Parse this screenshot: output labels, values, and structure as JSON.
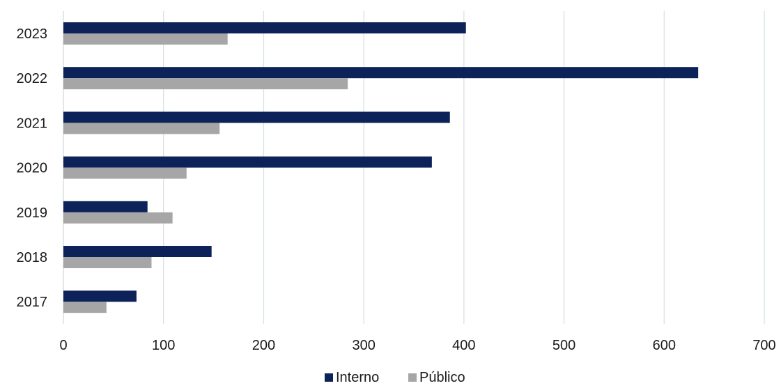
{
  "chart_data": {
    "type": "bar",
    "orientation": "horizontal",
    "title": "",
    "xlabel": "",
    "ylabel": "",
    "categories": [
      "2023",
      "2022",
      "2021",
      "2020",
      "2019",
      "2018",
      "2017"
    ],
    "series": [
      {
        "name": "Interno",
        "color": "#0d2259",
        "values": [
          402,
          634,
          386,
          368,
          84,
          148,
          73
        ]
      },
      {
        "name": "Público",
        "color": "#a6a6a6",
        "values": [
          164,
          284,
          156,
          123,
          109,
          88,
          43
        ]
      }
    ],
    "xlim": [
      0,
      700
    ],
    "xticks": [
      "0",
      "100",
      "200",
      "300",
      "400",
      "500",
      "600",
      "700"
    ],
    "grid": "vertical",
    "grid_color": "#d9e1e1",
    "legend_position": "bottom"
  }
}
